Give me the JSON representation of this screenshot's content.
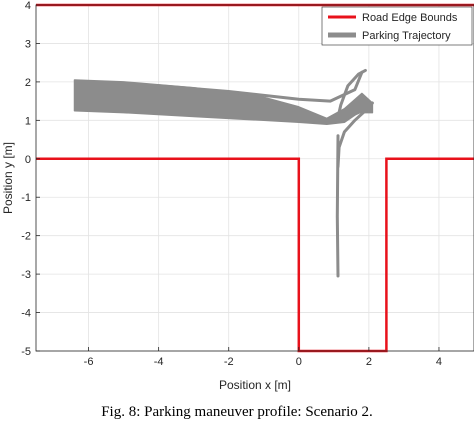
{
  "chart_data": {
    "type": "line",
    "xlabel": "Position x [m]",
    "ylabel": "Position y [m]",
    "xlim": [
      -7.5,
      5
    ],
    "ylim": [
      -5,
      4
    ],
    "xticks": [
      -6,
      -4,
      -2,
      0,
      2,
      4
    ],
    "yticks": [
      -5,
      -4,
      -3,
      -2,
      -1,
      0,
      1,
      2,
      3,
      4
    ],
    "grid": true,
    "legend_position": "top-right",
    "series": [
      {
        "name": "Road Edge Bounds",
        "color": "#e8111b",
        "segments": [
          {
            "x": [
              -7.5,
              5
            ],
            "y": [
              4,
              4
            ]
          },
          {
            "x": [
              -7.5,
              0,
              0,
              2.5,
              2.5,
              5
            ],
            "y": [
              0,
              0,
              -5,
              -5,
              0,
              0
            ]
          }
        ]
      },
      {
        "name": "Parking Trajectory",
        "color": "#8c8c8c",
        "band": {
          "upper": {
            "x": [
              -6.4,
              -5,
              -3,
              -1,
              0,
              0.8,
              1.3,
              1.8,
              2.1
            ],
            "y": [
              2.05,
              2.0,
              1.85,
              1.6,
              1.35,
              1.05,
              1.3,
              1.7,
              1.45
            ]
          },
          "lower": {
            "x": [
              2.1,
              1.7,
              1.3,
              0.8,
              0,
              -1,
              -3,
              -5,
              -6.4
            ],
            "y": [
              1.2,
              1.2,
              0.95,
              0.9,
              0.95,
              1.0,
              1.1,
              1.2,
              1.25
            ]
          }
        },
        "paths": [
          {
            "x": [
              -6.2,
              -4,
              -2,
              0,
              0.9,
              1.6,
              1.8
            ],
            "y": [
              1.95,
              1.9,
              1.75,
              1.55,
              1.5,
              1.8,
              2.25
            ]
          },
          {
            "x": [
              -6.3,
              -4,
              -2,
              0,
              1.0,
              1.7,
              2.0
            ],
            "y": [
              1.3,
              1.2,
              1.1,
              1.0,
              0.95,
              1.2,
              1.45
            ]
          },
          {
            "x": [
              1.1,
              1.2,
              1.4,
              1.7,
              1.9
            ],
            "y": [
              1.0,
              1.4,
              1.9,
              2.2,
              2.3
            ]
          },
          {
            "x": [
              1.12,
              1.1,
              1.12
            ],
            "y": [
              0.6,
              -1.5,
              -3.05
            ]
          },
          {
            "x": [
              1.12,
              1.15,
              1.3,
              1.6,
              1.9,
              2.1
            ],
            "y": [
              -0.2,
              0.3,
              0.7,
              1.0,
              1.25,
              1.45
            ]
          }
        ]
      }
    ]
  },
  "caption": "Fig. 8: Parking maneuver profile: Scenario 2."
}
